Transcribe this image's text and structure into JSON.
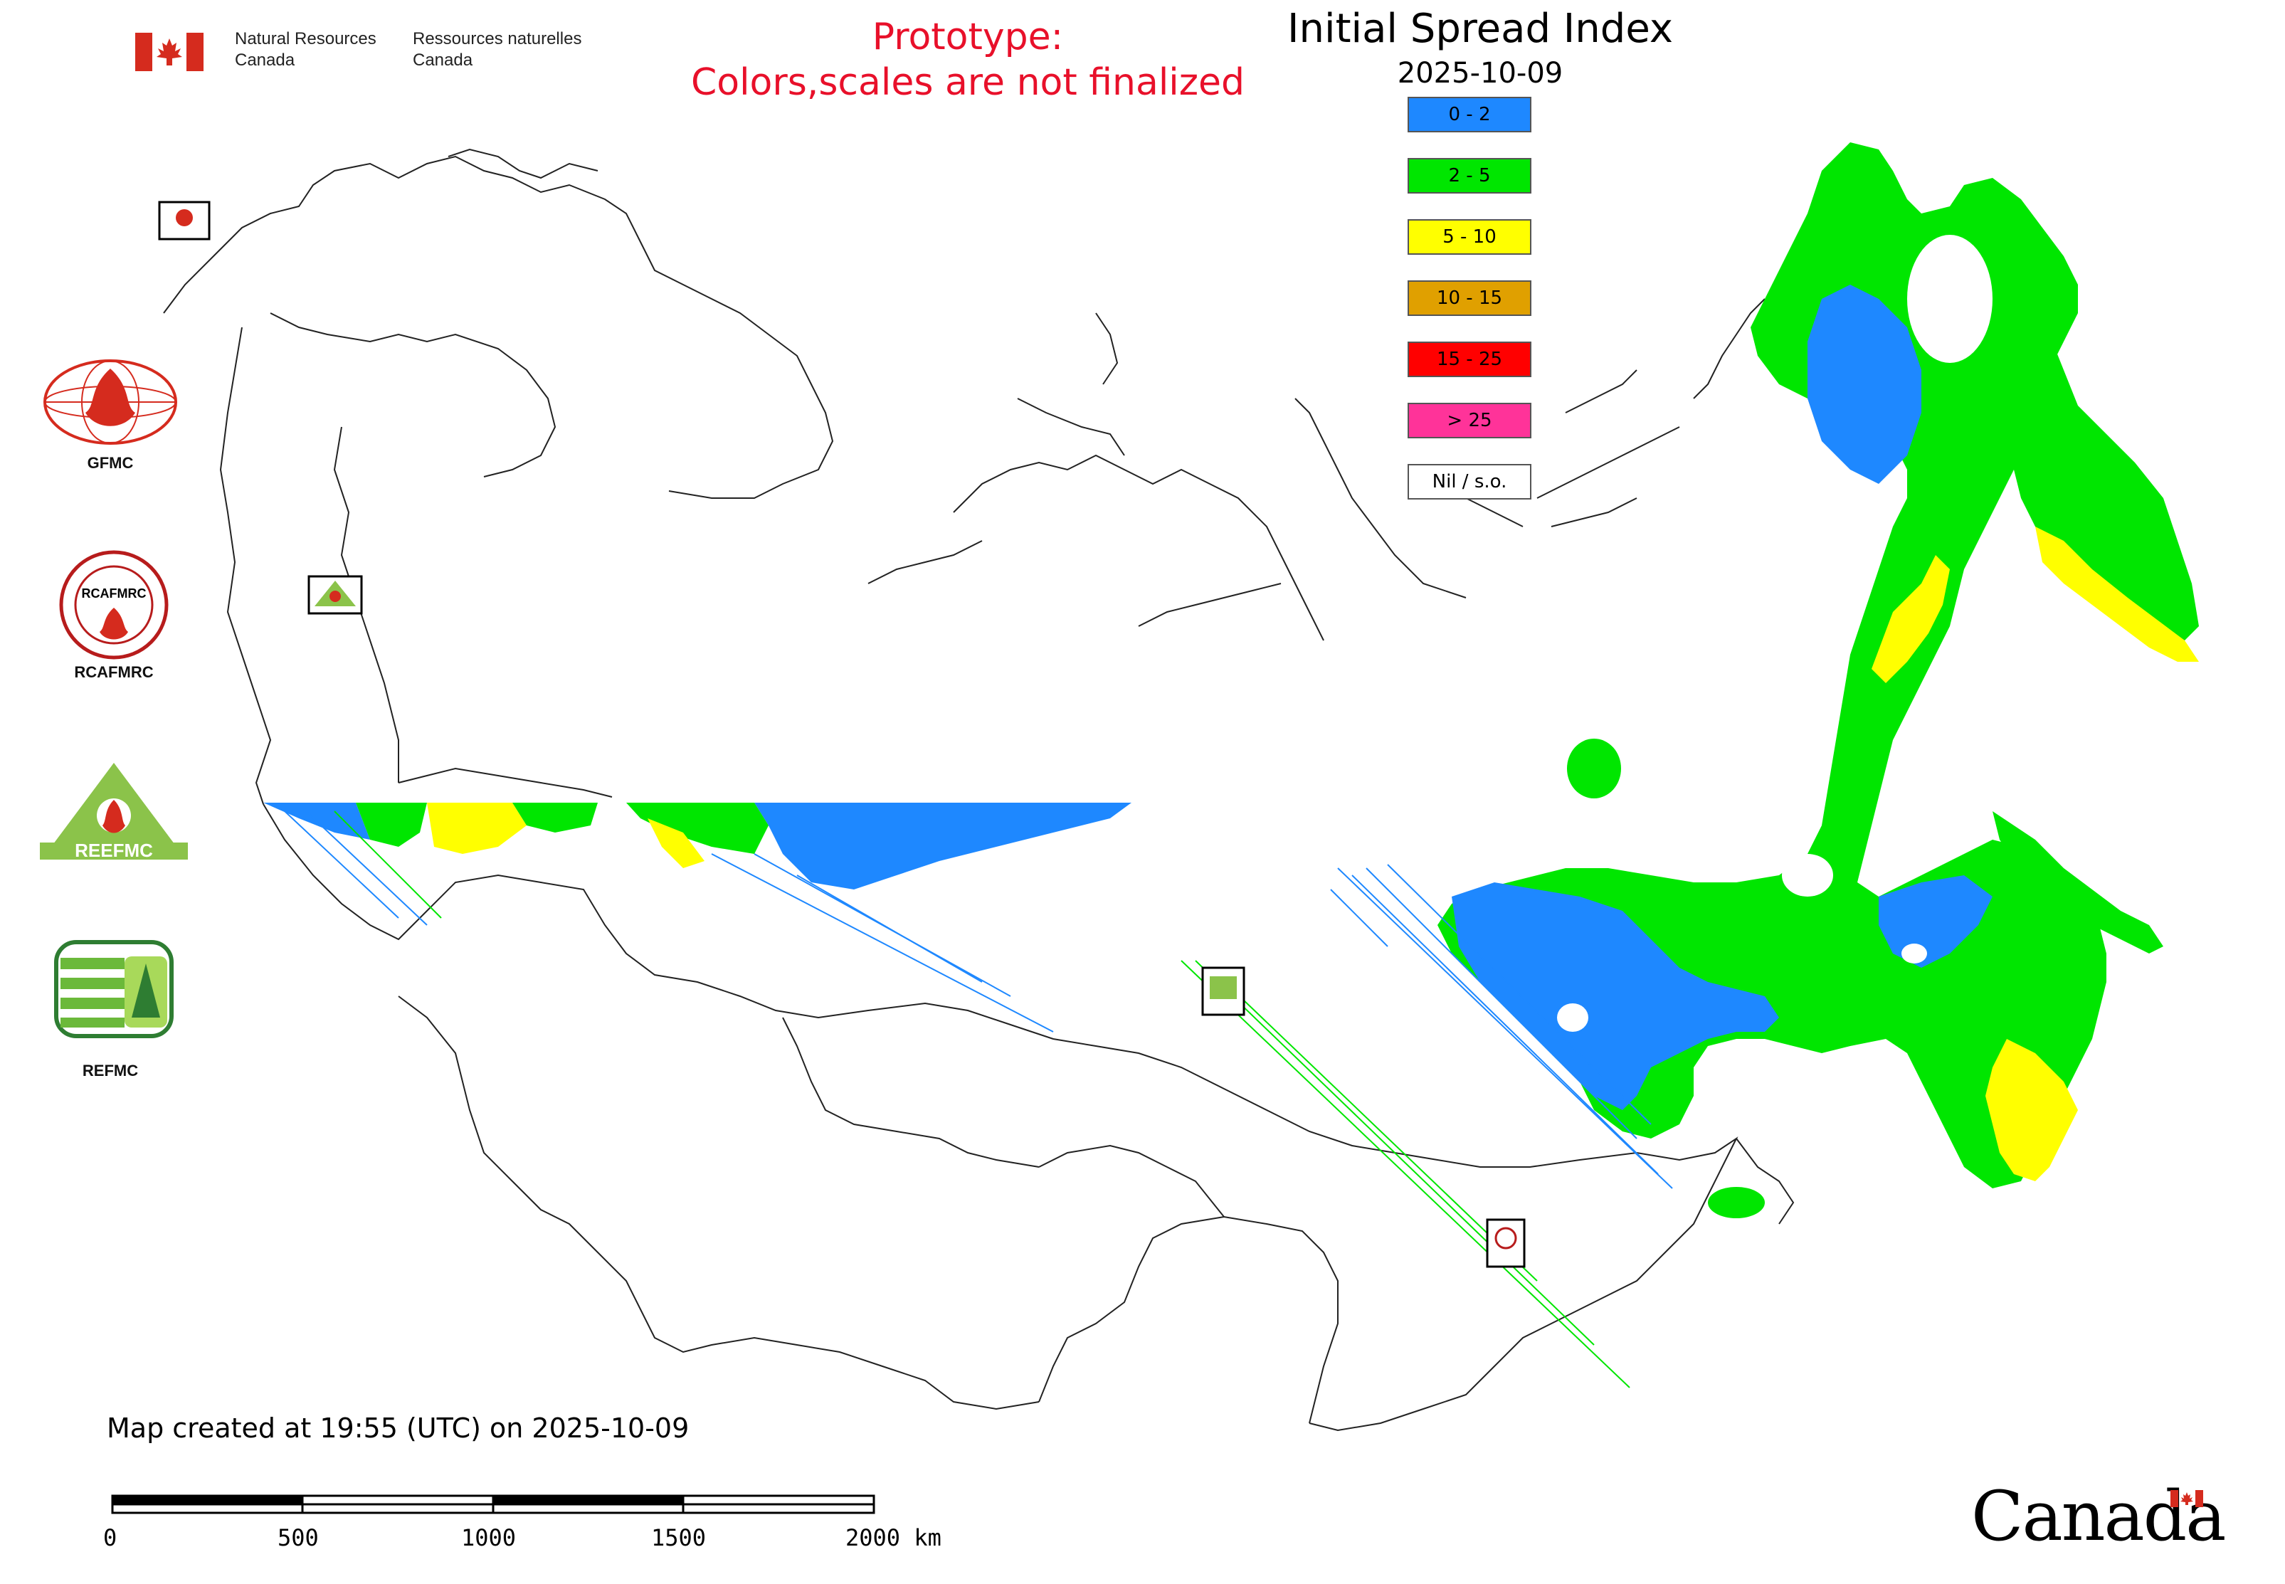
{
  "header": {
    "nrcan_en_line1": "Natural Resources",
    "nrcan_en_line2": "Canada",
    "nrcan_fr_line1": "Ressources naturelles",
    "nrcan_fr_line2": "Canada",
    "prototype_line1": "Prototype:",
    "prototype_line2": "Colors,scales are not finalized"
  },
  "map": {
    "title": "Initial Spread Index",
    "date": "2025-10-09",
    "created": "Map created at 19:55 (UTC) on 2025-10-09"
  },
  "legend": [
    {
      "label": "0 - 2",
      "color": "#1e88ff"
    },
    {
      "label": "2 - 5",
      "color": "#00e600"
    },
    {
      "label": "5 - 10",
      "color": "#ffff00"
    },
    {
      "label": "10 - 15",
      "color": "#e0a000"
    },
    {
      "label": "15 - 25",
      "color": "#ff0000"
    },
    {
      "label": "> 25",
      "color": "#ff3399"
    },
    {
      "label": "Nil / s.o.",
      "color": "#ffffff"
    }
  ],
  "logos": {
    "gfmc": "GFMC",
    "rcafmrc": "RCAFMRC",
    "reefmc": "REEFMC",
    "refmc": "REFMC",
    "rcafmrc_ring_text": "RCAFMRC",
    "reefmc_word": "REEFMC"
  },
  "scale_bar": {
    "labels": [
      "0",
      "500",
      "1000",
      "1500",
      "2000 km"
    ]
  },
  "footer": {
    "wordmark": "Canada"
  },
  "colors": {
    "blue": "#1e88ff",
    "green": "#00e600",
    "yellow": "#ffff00",
    "prototype_red": "#e8102a",
    "flag_red": "#d52b1e"
  }
}
